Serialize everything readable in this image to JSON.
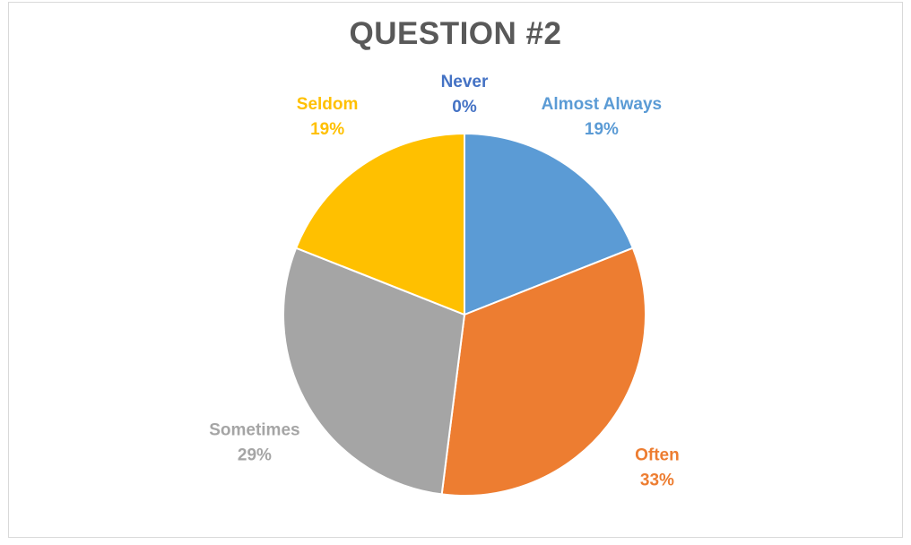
{
  "chart_data": {
    "type": "pie",
    "title": "QUESTION #2",
    "slices": [
      {
        "label": "Never",
        "value": 0,
        "display": "0%",
        "color": "#4472C4"
      },
      {
        "label": "Almost Always",
        "value": 19,
        "display": "19%",
        "color": "#5B9BD5"
      },
      {
        "label": "Often",
        "value": 33,
        "display": "33%",
        "color": "#ED7D31"
      },
      {
        "label": "Sometimes",
        "value": 29,
        "display": "29%",
        "color": "#A5A5A5"
      },
      {
        "label": "Seldom",
        "value": 19,
        "display": "19%",
        "color": "#FFC000"
      }
    ],
    "start_angle_deg": 0,
    "direction": "clockwise",
    "legend": "none"
  }
}
